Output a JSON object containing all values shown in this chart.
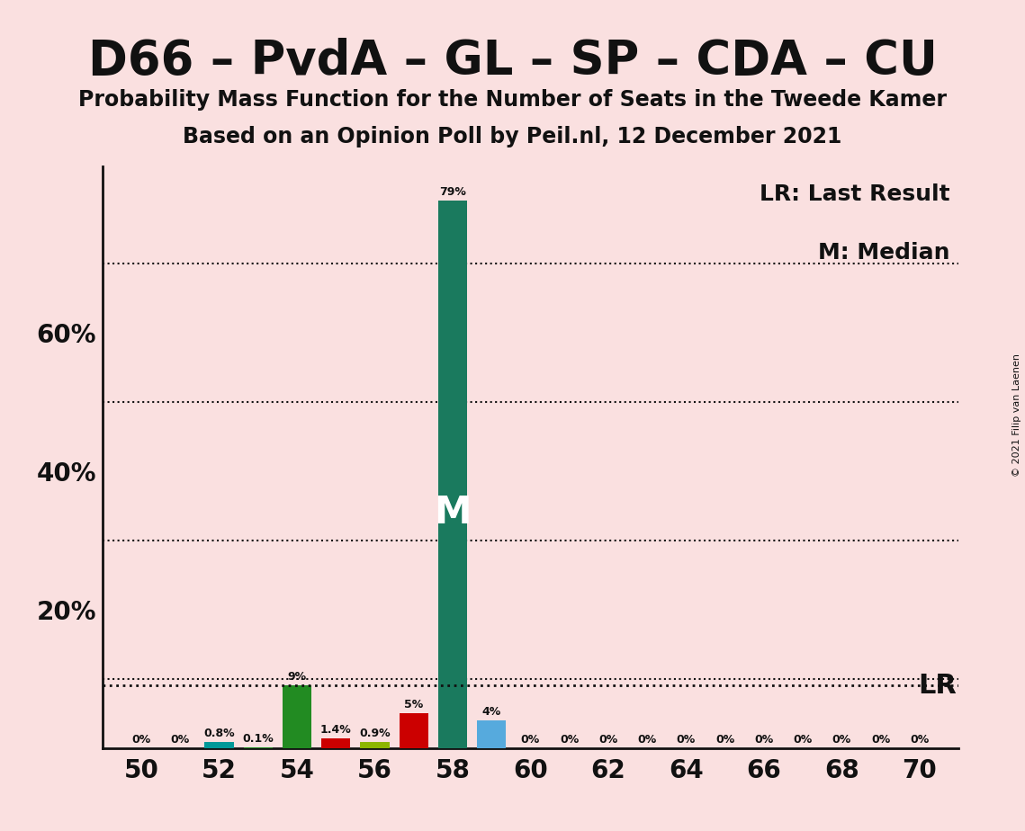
{
  "title": "D66 – PvdA – GL – SP – CDA – CU",
  "subtitle1": "Probability Mass Function for the Number of Seats in the Tweede Kamer",
  "subtitle2": "Based on an Opinion Poll by Peil.nl, 12 December 2021",
  "copyright": "© 2021 Filip van Laenen",
  "background_color": "#FAE0E0",
  "bar_data": [
    {
      "x": 50,
      "value": 0.0,
      "color": "#009999"
    },
    {
      "x": 51,
      "value": 0.0,
      "color": "#009999"
    },
    {
      "x": 52,
      "value": 0.8,
      "color": "#009999"
    },
    {
      "x": 53,
      "value": 0.1,
      "color": "#228B22"
    },
    {
      "x": 54,
      "value": 9.0,
      "color": "#228B22"
    },
    {
      "x": 55,
      "value": 1.4,
      "color": "#CC0000"
    },
    {
      "x": 56,
      "value": 0.9,
      "color": "#8DB600"
    },
    {
      "x": 57,
      "value": 5.0,
      "color": "#CC0000"
    },
    {
      "x": 58,
      "value": 79.0,
      "color": "#1A7A5E"
    },
    {
      "x": 59,
      "value": 4.0,
      "color": "#56AADD"
    },
    {
      "x": 60,
      "value": 0.0,
      "color": "#009999"
    },
    {
      "x": 61,
      "value": 0.0,
      "color": "#009999"
    },
    {
      "x": 62,
      "value": 0.0,
      "color": "#009999"
    },
    {
      "x": 63,
      "value": 0.0,
      "color": "#009999"
    },
    {
      "x": 64,
      "value": 0.0,
      "color": "#009999"
    },
    {
      "x": 65,
      "value": 0.0,
      "color": "#009999"
    },
    {
      "x": 66,
      "value": 0.0,
      "color": "#009999"
    },
    {
      "x": 67,
      "value": 0.0,
      "color": "#009999"
    },
    {
      "x": 68,
      "value": 0.0,
      "color": "#009999"
    },
    {
      "x": 69,
      "value": 0.0,
      "color": "#009999"
    },
    {
      "x": 70,
      "value": 0.0,
      "color": "#009999"
    }
  ],
  "median_x": 58,
  "last_result_value": 9.0,
  "xlim": [
    49.0,
    71.0
  ],
  "ylim": [
    0,
    84
  ],
  "yticks": [
    20,
    40,
    60
  ],
  "ytick_labels": [
    "20%",
    "40%",
    "60%"
  ],
  "xticks": [
    50,
    52,
    54,
    56,
    58,
    60,
    62,
    64,
    66,
    68,
    70
  ],
  "grid_color": "#111111",
  "axis_color": "#111111",
  "text_color": "#111111",
  "bar_width": 0.75,
  "legend_lr": "LR: Last Result",
  "legend_m": "M: Median",
  "lr_value": 9.0,
  "dotted_lines": [
    10,
    30,
    50,
    70
  ],
  "label_fontsize": 9,
  "tick_fontsize": 20,
  "legend_fontsize": 18,
  "title_fontsize": 38,
  "subtitle_fontsize": 17
}
